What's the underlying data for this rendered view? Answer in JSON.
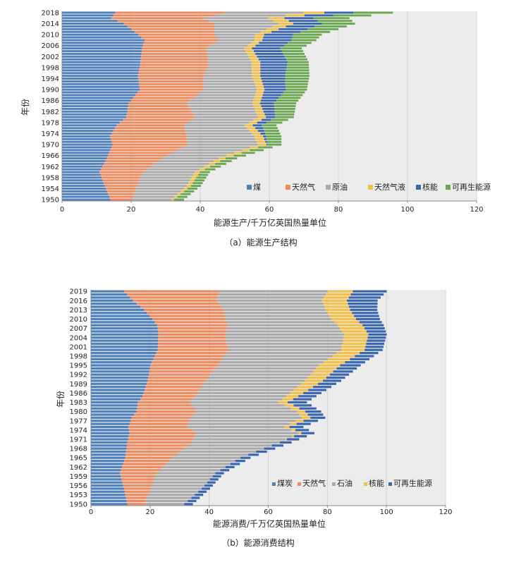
{
  "charts": [
    {
      "id": "production",
      "type": "bar",
      "orientation": "horizontal",
      "stacked": true,
      "caption": "（a）能源生产结构",
      "xlabel": "能源生产/千万亿英国热量单位",
      "ylabel": "年份",
      "xlim": [
        0,
        120
      ],
      "xticks": [
        0,
        20,
        40,
        60,
        80,
        100,
        120
      ],
      "years": [
        1950,
        2018
      ],
      "ytick_labels": [
        "2018",
        "2014",
        "2010",
        "2006",
        "2002",
        "1998",
        "1994",
        "1990",
        "1986",
        "1982",
        "1978",
        "1974",
        "1970",
        "1966",
        "1962",
        "1958",
        "1954",
        "1950"
      ],
      "legend_position": "bottom-right",
      "series": [
        {
          "name": "煤",
          "color": "#4e81bd"
        },
        {
          "name": "天然气",
          "color": "#f08a5d"
        },
        {
          "name": "原油",
          "color": "#aaaaaa"
        },
        {
          "name": "天然气液",
          "color": "#f5c04a"
        },
        {
          "name": "核能",
          "color": "#3a67b0"
        },
        {
          "name": "可再生能源",
          "color": "#6aa84f"
        }
      ],
      "keyframes": [
        {
          "year": 1950,
          "values": [
            14.0,
            6.2,
            11.4,
            0.8,
            0.0,
            2.9
          ]
        },
        {
          "year": 1955,
          "values": [
            12.4,
            9.3,
            14.4,
            1.2,
            0.0,
            2.9
          ]
        },
        {
          "year": 1960,
          "values": [
            10.8,
            12.7,
            14.9,
            1.5,
            0.0,
            2.9
          ]
        },
        {
          "year": 1965,
          "values": [
            13.0,
            15.8,
            16.5,
            2.0,
            0.0,
            3.4
          ]
        },
        {
          "year": 1970,
          "values": [
            14.6,
            21.7,
            20.4,
            2.5,
            0.2,
            4.1
          ]
        },
        {
          "year": 1973,
          "values": [
            13.9,
            22.2,
            19.5,
            2.6,
            0.9,
            4.4
          ]
        },
        {
          "year": 1977,
          "values": [
            15.8,
            19.6,
            17.5,
            2.3,
            2.7,
            4.2
          ]
        },
        {
          "year": 1980,
          "values": [
            18.6,
            19.9,
            18.2,
            2.3,
            2.7,
            5.4
          ]
        },
        {
          "year": 1985,
          "values": [
            19.3,
            16.9,
            18.9,
            2.2,
            4.1,
            6.4
          ]
        },
        {
          "year": 1990,
          "values": [
            22.5,
            18.3,
            15.6,
            2.2,
            6.1,
            6.2
          ]
        },
        {
          "year": 1995,
          "values": [
            22.0,
            19.1,
            13.9,
            2.4,
            7.2,
            7.0
          ]
        },
        {
          "year": 2000,
          "values": [
            22.7,
            19.7,
            12.4,
            2.6,
            7.9,
            6.1
          ]
        },
        {
          "year": 2005,
          "values": [
            23.2,
            18.6,
            10.9,
            2.3,
            8.2,
            6.2
          ]
        },
        {
          "year": 2008,
          "values": [
            23.9,
            21.1,
            10.6,
            2.4,
            8.4,
            7.2
          ]
        },
        {
          "year": 2010,
          "values": [
            22.1,
            22.1,
            11.6,
            2.7,
            8.4,
            8.3
          ]
        },
        {
          "year": 2014,
          "values": [
            17.9,
            26.2,
            18.5,
            4.3,
            8.3,
            9.6
          ]
        },
        {
          "year": 2016,
          "values": [
            14.2,
            26.9,
            18.6,
            4.7,
            8.4,
            10.4
          ]
        },
        {
          "year": 2018,
          "values": [
            15.4,
            31.6,
            22.8,
            6.1,
            8.4,
            11.5
          ]
        }
      ]
    },
    {
      "id": "consumption",
      "type": "bar",
      "orientation": "horizontal",
      "stacked": true,
      "caption": "（b）能源消费结构",
      "xlabel": "能源消费/千万亿英国热量单位",
      "ylabel": "年份",
      "xlim": [
        0,
        120
      ],
      "xticks": [
        0,
        20,
        40,
        60,
        80,
        100,
        120
      ],
      "years": [
        1950,
        2019
      ],
      "ytick_labels": [
        "2019",
        "2016",
        "2013",
        "2010",
        "2007",
        "2004",
        "2001",
        "1998",
        "1995",
        "1992",
        "1989",
        "1986",
        "1983",
        "1980",
        "1977",
        "1974",
        "1971",
        "1968",
        "1965",
        "1962",
        "1959",
        "1956",
        "1953",
        "1950"
      ],
      "legend_position": "bottom-right",
      "series": [
        {
          "name": "煤炭",
          "color": "#4e81bd"
        },
        {
          "name": "天然气",
          "color": "#f08a5d"
        },
        {
          "name": "石油",
          "color": "#aaaaaa"
        },
        {
          "name": "核能",
          "color": "#f5c04a"
        },
        {
          "name": "可再生能源",
          "color": "#3a67b0"
        }
      ],
      "keyframes": [
        {
          "year": 1950,
          "values": [
            12.3,
            6.0,
            13.3,
            0.0,
            2.9
          ]
        },
        {
          "year": 1955,
          "values": [
            11.2,
            9.0,
            17.3,
            0.0,
            2.8
          ]
        },
        {
          "year": 1960,
          "values": [
            9.8,
            12.4,
            19.9,
            0.0,
            2.9
          ]
        },
        {
          "year": 1965,
          "values": [
            11.6,
            15.8,
            23.2,
            0.0,
            3.4
          ]
        },
        {
          "year": 1970,
          "values": [
            12.3,
            21.8,
            29.5,
            0.2,
            4.1
          ]
        },
        {
          "year": 1973,
          "values": [
            13.0,
            22.5,
            34.8,
            0.9,
            4.4
          ]
        },
        {
          "year": 1975,
          "values": [
            12.7,
            19.9,
            32.7,
            1.9,
            4.7
          ]
        },
        {
          "year": 1978,
          "values": [
            13.8,
            19.6,
            37.9,
            3.0,
            5.0
          ]
        },
        {
          "year": 1980,
          "values": [
            15.4,
            20.2,
            34.2,
            2.7,
            5.4
          ]
        },
        {
          "year": 1983,
          "values": [
            15.9,
            17.4,
            30.1,
            3.2,
            6.5
          ]
        },
        {
          "year": 1985,
          "values": [
            17.5,
            17.7,
            30.9,
            4.1,
            6.1
          ]
        },
        {
          "year": 1990,
          "values": [
            19.2,
            19.6,
            33.6,
            6.1,
            6.2
          ]
        },
        {
          "year": 1995,
          "values": [
            20.1,
            22.7,
            34.4,
            7.1,
            7.0
          ]
        },
        {
          "year": 2000,
          "values": [
            22.6,
            23.8,
            38.3,
            7.9,
            6.1
          ]
        },
        {
          "year": 2005,
          "values": [
            22.8,
            22.6,
            40.3,
            8.2,
            6.2
          ]
        },
        {
          "year": 2008,
          "values": [
            22.4,
            23.8,
            37.3,
            8.4,
            7.2
          ]
        },
        {
          "year": 2010,
          "values": [
            20.8,
            24.6,
            35.9,
            8.4,
            8.1
          ]
        },
        {
          "year": 2013,
          "values": [
            18.0,
            26.8,
            34.6,
            8.3,
            9.2
          ]
        },
        {
          "year": 2016,
          "values": [
            14.2,
            28.4,
            35.6,
            8.4,
            10.4
          ]
        },
        {
          "year": 2019,
          "values": [
            11.3,
            32.1,
            36.7,
            8.5,
            11.5
          ]
        }
      ]
    }
  ]
}
